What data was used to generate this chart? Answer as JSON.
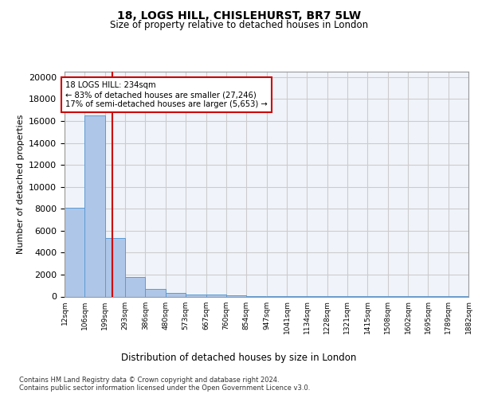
{
  "title1": "18, LOGS HILL, CHISLEHURST, BR7 5LW",
  "title2": "Size of property relative to detached houses in London",
  "xlabel": "Distribution of detached houses by size in London",
  "ylabel": "Number of detached properties",
  "bar_color": "#aec6e8",
  "bar_edge_color": "#5b9bd5",
  "bin_edges": [
    12,
    106,
    199,
    293,
    386,
    480,
    573,
    667,
    760,
    854,
    947,
    1041,
    1134,
    1228,
    1321,
    1415,
    1508,
    1602,
    1695,
    1789,
    1882
  ],
  "bar_heights": [
    8100,
    16500,
    5300,
    1800,
    700,
    350,
    200,
    150,
    100,
    70,
    50,
    35,
    25,
    18,
    12,
    8,
    6,
    5,
    4,
    4
  ],
  "red_line_x": 234,
  "annotation_text": "18 LOGS HILL: 234sqm\n← 83% of detached houses are smaller (27,246)\n17% of semi-detached houses are larger (5,653) →",
  "annotation_box_color": "#ffffff",
  "annotation_border_color": "#cc0000",
  "ylim": [
    0,
    20500
  ],
  "yticks": [
    0,
    2000,
    4000,
    6000,
    8000,
    10000,
    12000,
    14000,
    16000,
    18000,
    20000
  ],
  "grid_color": "#cccccc",
  "background_color": "#f0f4fa",
  "footer_line1": "Contains HM Land Registry data © Crown copyright and database right 2024.",
  "footer_line2": "Contains public sector information licensed under the Open Government Licence v3.0.",
  "tick_labels": [
    "12sqm",
    "106sqm",
    "199sqm",
    "293sqm",
    "386sqm",
    "480sqm",
    "573sqm",
    "667sqm",
    "760sqm",
    "854sqm",
    "947sqm",
    "1041sqm",
    "1134sqm",
    "1228sqm",
    "1321sqm",
    "1415sqm",
    "1508sqm",
    "1602sqm",
    "1695sqm",
    "1789sqm",
    "1882sqm"
  ]
}
